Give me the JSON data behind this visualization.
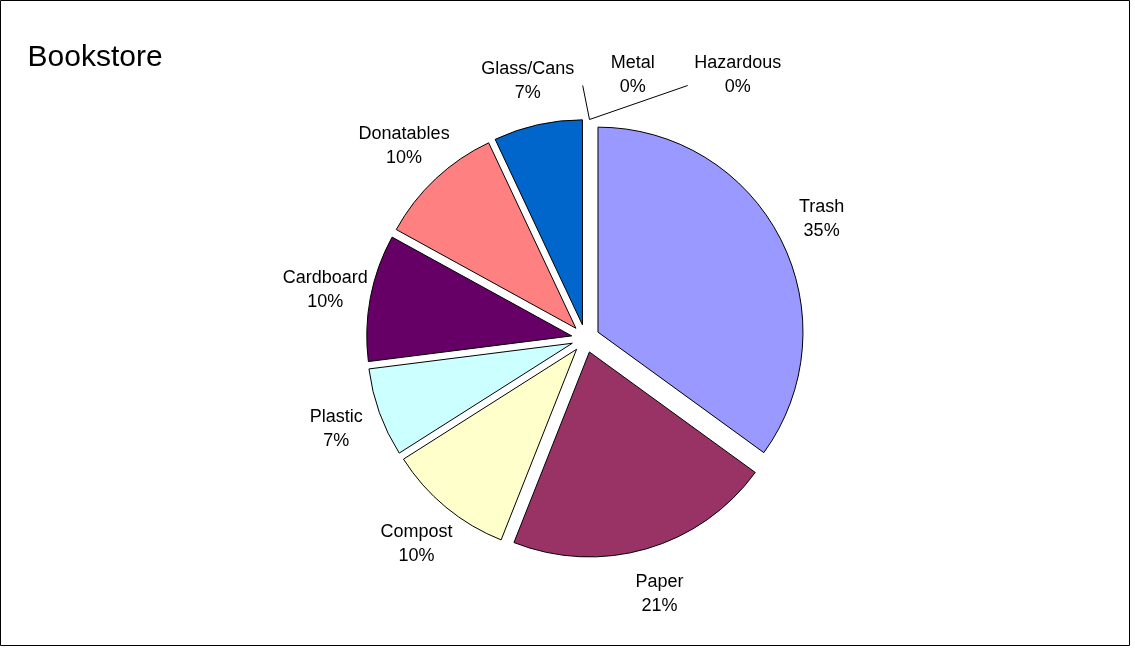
{
  "chart_data": {
    "type": "pie",
    "title": "Bookstore",
    "categories": [
      "Trash",
      "Paper",
      "Compost",
      "Plastic",
      "Cardboard",
      "Donatables",
      "Glass/Cans",
      "Metal",
      "Hazardous"
    ],
    "values": [
      35,
      21,
      10,
      7,
      10,
      10,
      7,
      0,
      0
    ],
    "value_labels": [
      "35%",
      "21%",
      "10%",
      "7%",
      "10%",
      "10%",
      "7%",
      "0%",
      "0%"
    ],
    "colors": [
      "#9999ff",
      "#993366",
      "#ffffcc",
      "#ccffff",
      "#660066",
      "#ff8080",
      "#0066cc",
      "#c0c0c0",
      "#000080"
    ]
  }
}
